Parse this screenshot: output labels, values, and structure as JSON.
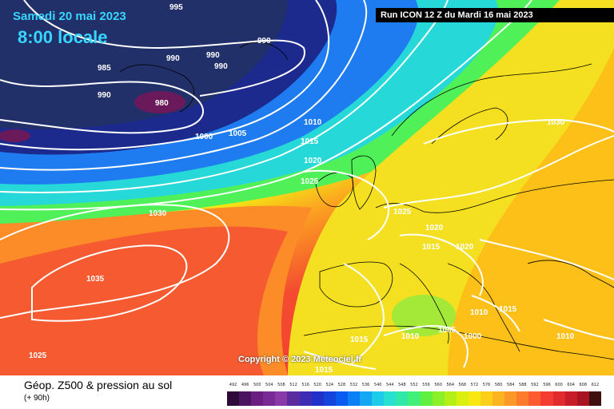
{
  "header": {
    "date": "Samedi 20 mai 2023",
    "time": "8:00 locale",
    "run": "Run ICON 12 Z du Mardi 16 mai 2023"
  },
  "copyright": "Copyright © 2023 Meteociel.fr",
  "footer": {
    "title": "Géop. Z500 & pression au sol",
    "subtitle": "(+ 90h)"
  },
  "isobars": [
    {
      "text": "995"
    },
    {
      "text": "990"
    },
    {
      "text": "985"
    },
    {
      "text": "990"
    },
    {
      "text": "980"
    },
    {
      "text": "990"
    },
    {
      "text": "990"
    },
    {
      "text": "990"
    },
    {
      "text": "1000"
    },
    {
      "text": "1005"
    },
    {
      "text": "1010"
    },
    {
      "text": "1015"
    },
    {
      "text": "1020"
    },
    {
      "text": "1025"
    },
    {
      "text": "1030"
    },
    {
      "text": "1030"
    },
    {
      "text": "1035"
    },
    {
      "text": "1025"
    },
    {
      "text": "1025"
    },
    {
      "text": "1020"
    },
    {
      "text": "1015"
    },
    {
      "text": "1020"
    },
    {
      "text": "1010"
    },
    {
      "text": "1015"
    },
    {
      "text": "1010"
    },
    {
      "text": "1005"
    },
    {
      "text": "1000"
    },
    {
      "text": "1015"
    },
    {
      "text": "1015"
    },
    {
      "text": "1010"
    }
  ],
  "legend": {
    "labels": [
      "492",
      "496",
      "500",
      "504",
      "508",
      "512",
      "516",
      "520",
      "524",
      "528",
      "532",
      "536",
      "540",
      "544",
      "548",
      "552",
      "556",
      "560",
      "564",
      "568",
      "572",
      "576",
      "580",
      "584",
      "588",
      "592",
      "596",
      "600",
      "604",
      "608",
      "612"
    ],
    "colors": [
      "#2e0a3a",
      "#4a1460",
      "#6a1e80",
      "#7a2a94",
      "#8a3aa8",
      "#5a2ca0",
      "#3e2cb4",
      "#2030c8",
      "#1444dc",
      "#0a5cf0",
      "#0a80f4",
      "#14a8f4",
      "#1ccce8",
      "#28e0d0",
      "#30e8a8",
      "#40f078",
      "#60f040",
      "#8cf028",
      "#b4f018",
      "#dcf010",
      "#f8e810",
      "#fcd018",
      "#fcb420",
      "#fc9828",
      "#fc7c2c",
      "#fc5c30",
      "#f43c30",
      "#e02c2c",
      "#c81c28",
      "#a81420",
      "#401010"
    ]
  }
}
